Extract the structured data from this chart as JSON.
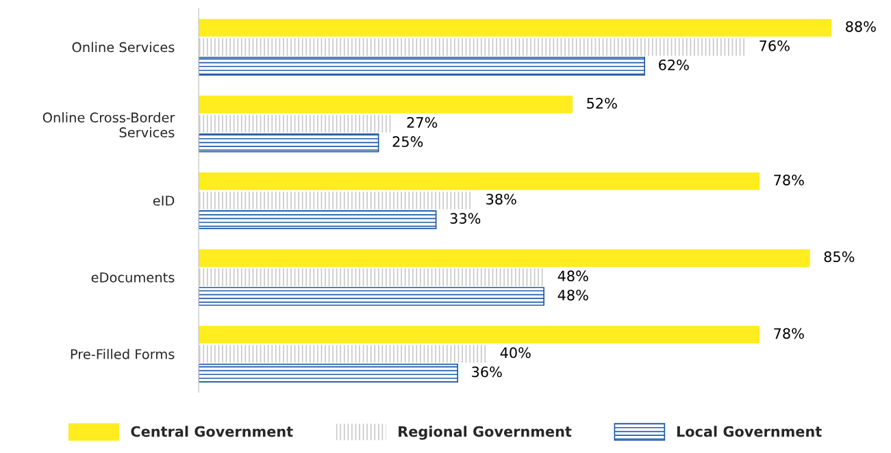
{
  "chart_data": {
    "type": "bar",
    "orientation": "horizontal",
    "categories": [
      "Online Services",
      "Online Cross-Border\nServices",
      "eID",
      "eDocuments",
      "Pre-Filled Forms"
    ],
    "series": [
      {
        "name": "Central Government",
        "color": "#ffed1f",
        "values": [
          88,
          52,
          78,
          85,
          78
        ],
        "value_labels": [
          "88%",
          "52%",
          "78%",
          "85%",
          "78%"
        ]
      },
      {
        "name": "Regional Government",
        "color": "#c8c8c8",
        "values": [
          76,
          27,
          38,
          48,
          40
        ],
        "value_labels": [
          "76%",
          "27%",
          "38%",
          "48%",
          "40%"
        ]
      },
      {
        "name": "Local Government",
        "color": "#1f5aa6",
        "values": [
          62,
          25,
          33,
          48,
          36
        ],
        "value_labels": [
          "62%",
          "25%",
          "33%",
          "48%",
          "36%"
        ]
      }
    ],
    "legend": "bottom",
    "grid": false,
    "tick_labels": "y"
  }
}
